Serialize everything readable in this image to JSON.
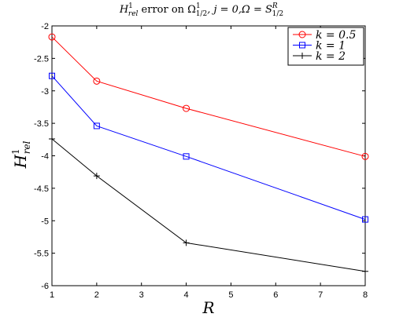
{
  "chart_data": {
    "type": "line",
    "title": {
      "main": "H",
      "main_sup": "1",
      "main_sub": "rel",
      "mid": " error on Ω",
      "omega_sup": "1",
      "omega_sub": "1/2",
      "tail": ", j = 0,Ω = S",
      "s_sup": "R",
      "s_sub": "1/2"
    },
    "xlabel": "R",
    "ylabel": {
      "main": "H",
      "sup": "1",
      "sub": "rel"
    },
    "xlim": [
      1,
      8
    ],
    "ylim": [
      -6,
      -2
    ],
    "xticks": [
      1,
      2,
      3,
      4,
      5,
      6,
      7,
      8
    ],
    "yticks": [
      -2,
      -2.5,
      -3,
      -3.5,
      -4,
      -4.5,
      -5,
      -5.5,
      -6
    ],
    "ytick_labels": [
      "-2",
      "-2.5",
      "-3",
      "-3.5",
      "-4",
      "-4.5",
      "-5",
      "-5.5",
      "-6"
    ],
    "legend_position": "top-right",
    "grid": false,
    "series": [
      {
        "name": "k = 0.5",
        "color": "#ff0000",
        "marker": "circle",
        "x": [
          1,
          2,
          4,
          8
        ],
        "y": [
          -2.17,
          -2.85,
          -3.27,
          -4.01
        ]
      },
      {
        "name": "k = 1",
        "color": "#0000ff",
        "marker": "square",
        "x": [
          1,
          2,
          4,
          8
        ],
        "y": [
          -2.77,
          -3.54,
          -4.01,
          -4.98
        ]
      },
      {
        "name": "k = 2",
        "color": "#000000",
        "marker": "plus",
        "x": [
          1,
          2,
          4,
          8
        ],
        "y": [
          -3.74,
          -4.31,
          -5.34,
          -5.78
        ]
      }
    ]
  }
}
